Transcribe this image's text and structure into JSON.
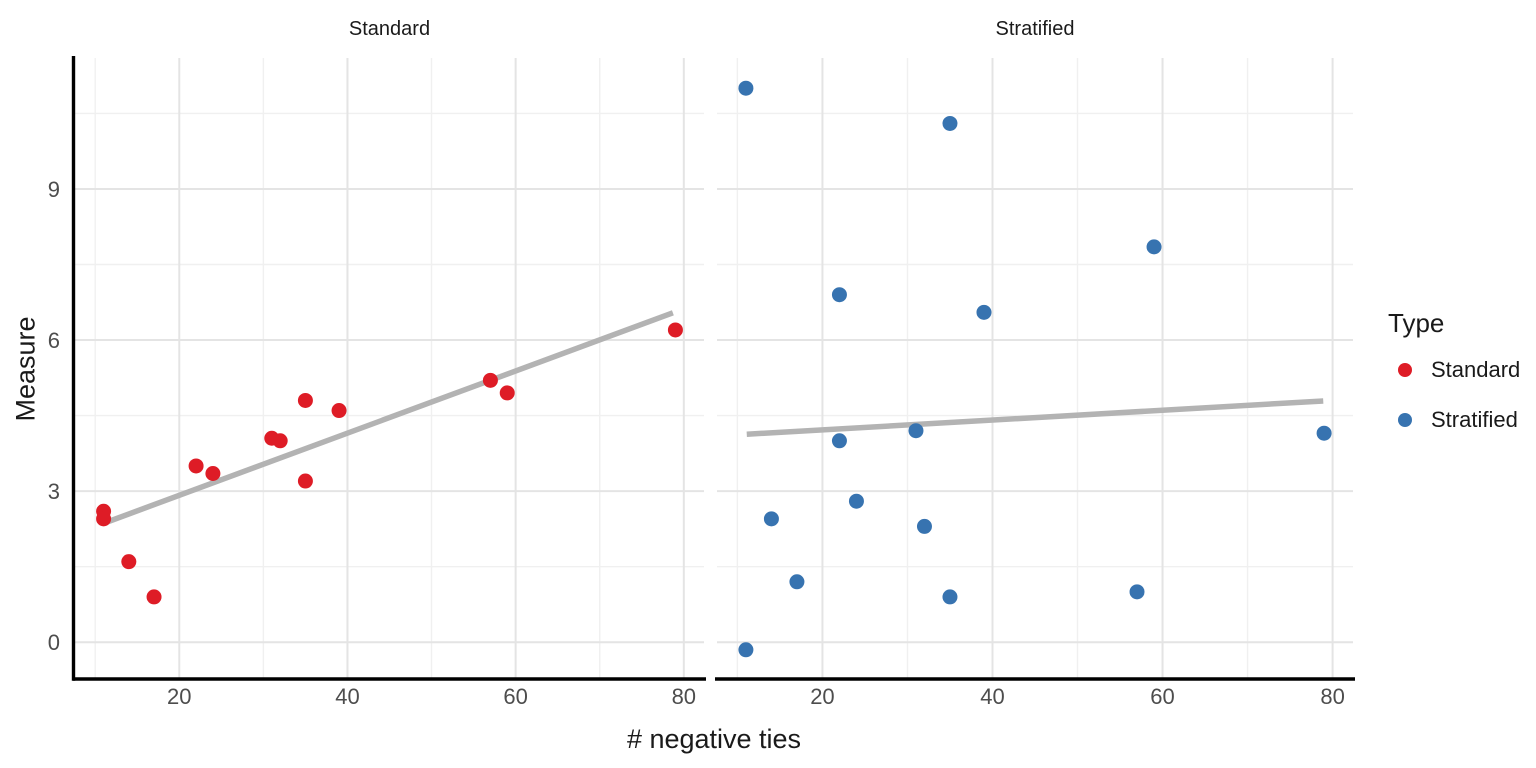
{
  "chart_data": {
    "type": "scatter",
    "faceted": true,
    "facet_titles": [
      "Standard",
      "Stratified"
    ],
    "xlabel": "# negative ties",
    "ylabel": "Measure",
    "x_ticks": [
      20,
      40,
      60,
      80
    ],
    "y_ticks": [
      0,
      3,
      6,
      9
    ],
    "x_minor": [
      10,
      30,
      50,
      70
    ],
    "y_minor": [
      1.5,
      4.5,
      7.5,
      10.5
    ],
    "xlim": [
      7.6,
      82.4
    ],
    "ylim": [
      -0.75,
      11.6
    ],
    "grid": true,
    "legend_position": "right",
    "legend": {
      "title": "Type",
      "entries": [
        "Standard",
        "Stratified"
      ]
    },
    "series": [
      {
        "name": "Standard",
        "facet": "Standard",
        "color": "#DE1C26",
        "points": [
          [
            11,
            2.6
          ],
          [
            11,
            2.45
          ],
          [
            14,
            1.6
          ],
          [
            17,
            0.9
          ],
          [
            22,
            3.5
          ],
          [
            24,
            3.35
          ],
          [
            31,
            4.05
          ],
          [
            32,
            4.0
          ],
          [
            35,
            4.8
          ],
          [
            35,
            3.2
          ],
          [
            39,
            4.6
          ],
          [
            57,
            5.2
          ],
          [
            59,
            4.95
          ],
          [
            79,
            6.2
          ]
        ]
      },
      {
        "name": "Stratified",
        "facet": "Stratified",
        "color": "#3773B0",
        "points": [
          [
            11,
            11.0
          ],
          [
            11,
            -0.15
          ],
          [
            14,
            2.45
          ],
          [
            17,
            1.2
          ],
          [
            22,
            6.9
          ],
          [
            22,
            4.0
          ],
          [
            24,
            2.8
          ],
          [
            31,
            4.2
          ],
          [
            32,
            2.3
          ],
          [
            35,
            10.3
          ],
          [
            35,
            0.9
          ],
          [
            39,
            6.55
          ],
          [
            57,
            1.0
          ],
          [
            59,
            7.85
          ],
          [
            79,
            4.15
          ]
        ]
      }
    ],
    "trend_lines": [
      {
        "facet": "Standard",
        "x1": 11.3,
        "y1": 2.38,
        "x2": 78.7,
        "y2": 6.54
      },
      {
        "facet": "Stratified",
        "x1": 11.1,
        "y1": 4.13,
        "x2": 78.9,
        "y2": 4.79
      }
    ],
    "trend_color": "#B3B3B3",
    "grid_major_color": "#E4E4E4",
    "grid_minor_color": "#F0F0F0",
    "axis_line_color": "#000000",
    "tick_label_color": "#4D4D4D"
  }
}
